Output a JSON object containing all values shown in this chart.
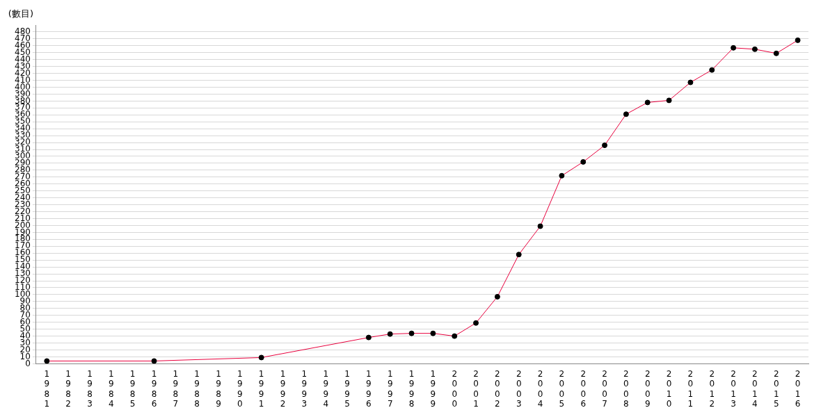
{
  "chart_data": {
    "type": "line",
    "ylabel": "(數目)",
    "categories": [
      "1981",
      "1982",
      "1983",
      "1984",
      "1985",
      "1986",
      "1987",
      "1988",
      "1989",
      "1990",
      "1991",
      "1992",
      "1993",
      "1994",
      "1995",
      "1996",
      "1997",
      "1998",
      "1999",
      "2000",
      "2001",
      "2002",
      "2003",
      "2004",
      "2005",
      "2006",
      "2007",
      "2008",
      "2009",
      "2010",
      "2011",
      "2012",
      "2013",
      "2014",
      "2015",
      "2016"
    ],
    "series": [
      {
        "color": "#e8003d",
        "values": [
          4,
          null,
          null,
          null,
          null,
          4,
          null,
          null,
          null,
          null,
          9,
          null,
          null,
          null,
          null,
          38,
          43,
          44,
          44,
          40,
          59,
          97,
          158,
          199,
          272,
          292,
          316,
          361,
          378,
          381,
          407,
          425,
          457,
          455,
          449,
          468
        ]
      }
    ],
    "ylim": [
      0,
      490
    ],
    "yticks": [
      0,
      10,
      20,
      30,
      40,
      50,
      60,
      70,
      80,
      90,
      100,
      110,
      120,
      130,
      140,
      150,
      160,
      170,
      180,
      190,
      200,
      210,
      220,
      230,
      240,
      250,
      260,
      270,
      280,
      290,
      300,
      310,
      320,
      330,
      340,
      350,
      360,
      370,
      380,
      390,
      400,
      410,
      420,
      430,
      440,
      450,
      460,
      470,
      480
    ],
    "grid": "y",
    "marker": "circle",
    "line_style": "solid",
    "legend": false
  }
}
